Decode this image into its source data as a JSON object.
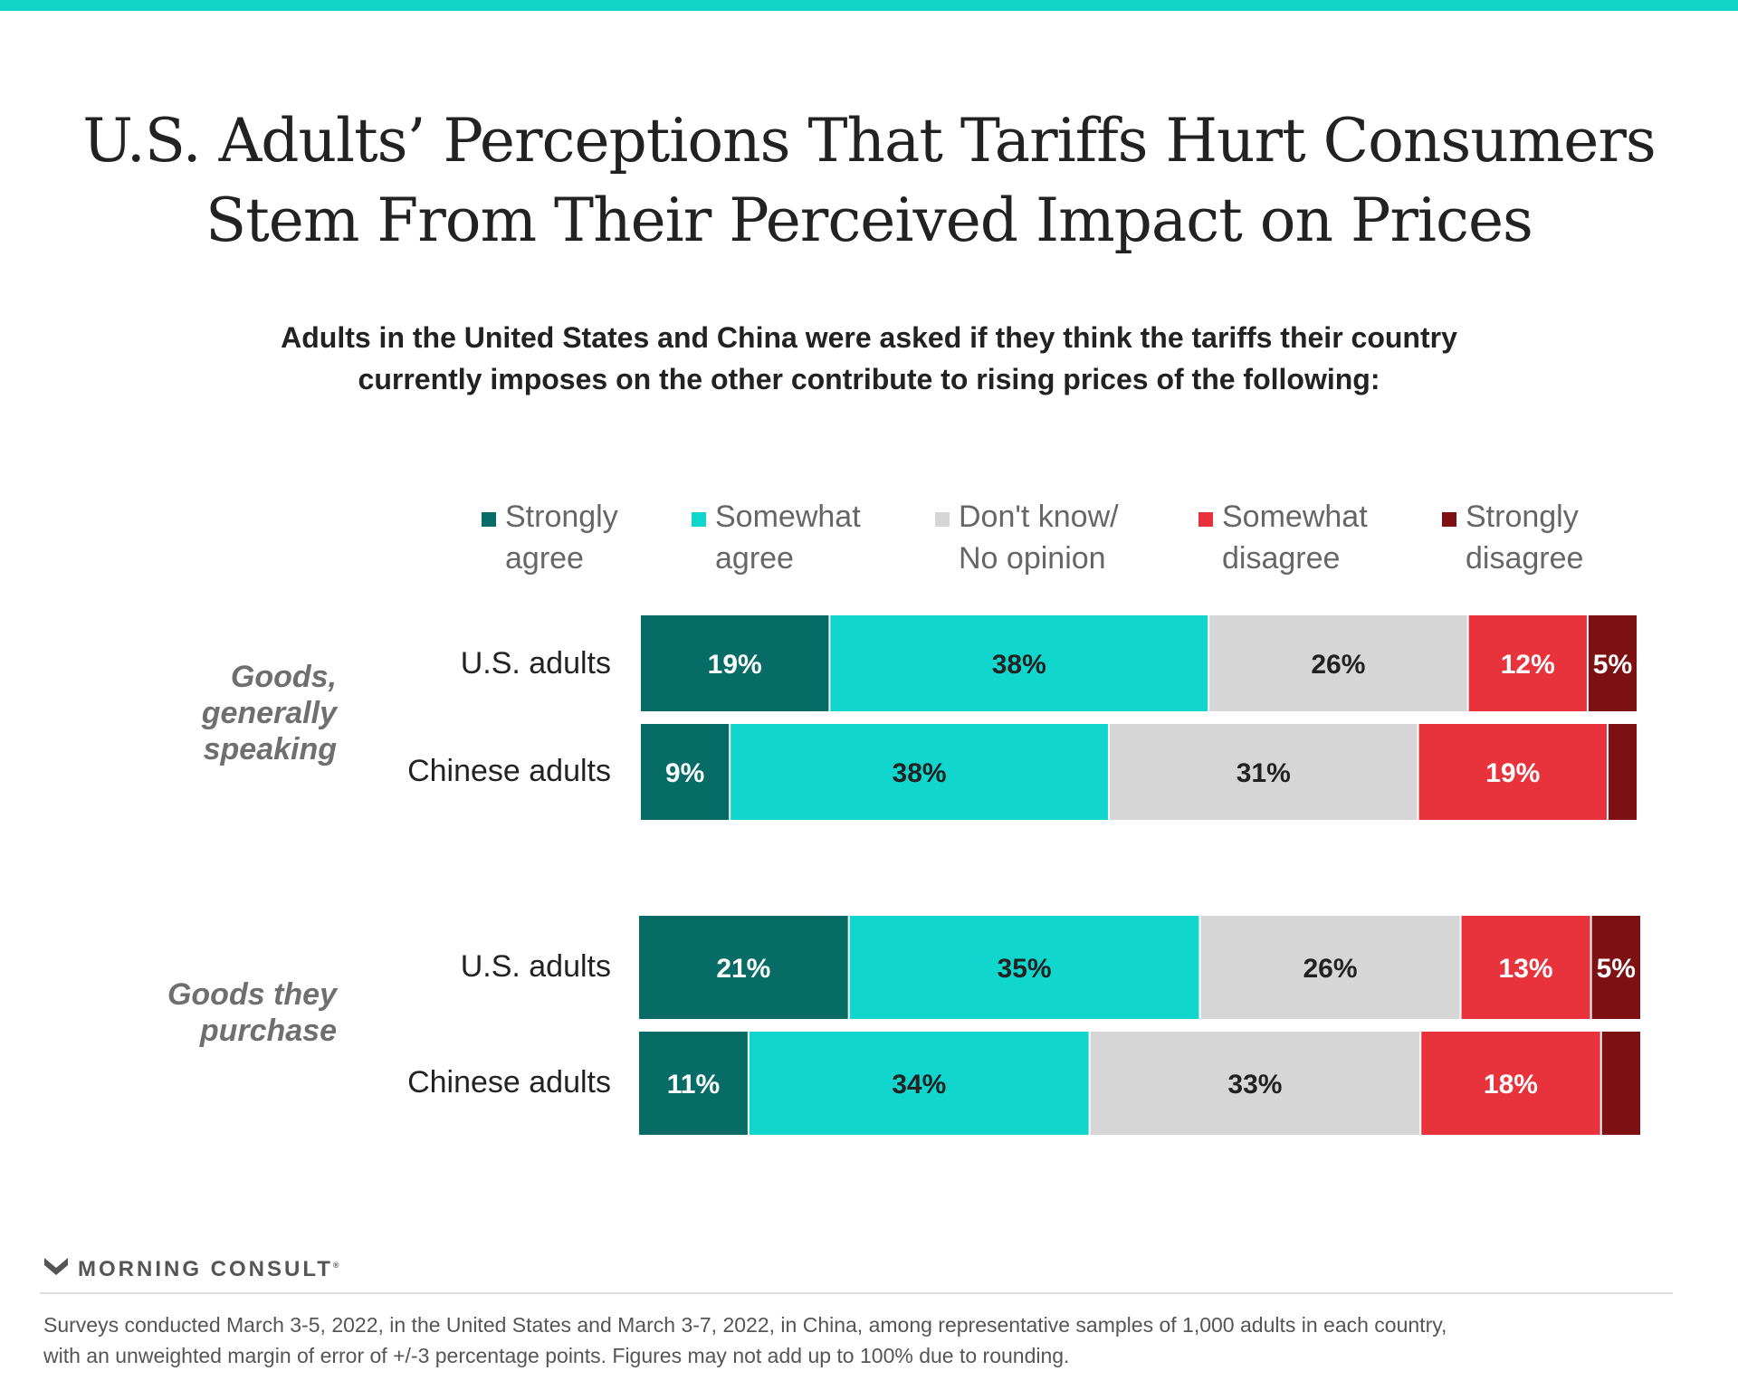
{
  "colors": {
    "accent_bar": "#13d2c8",
    "strongly_agree": "#076b66",
    "somewhat_agree": "#10d6cd",
    "dont_know": "#d6d6d6",
    "somewhat_disagree": "#e8323c",
    "strongly_disagree": "#7d1012"
  },
  "title_lines": [
    "U.S. Adults’ Perceptions That Tariffs Hurt Consumers",
    "Stem From Their Perceived Impact on Prices"
  ],
  "subtitle_lines": [
    "Adults in the United States and China were asked if they think the tariffs their country",
    "currently imposes on the other contribute to rising prices of the following:"
  ],
  "legend": [
    {
      "line1": "Strongly",
      "line2": "agree",
      "color_key": "strongly_agree"
    },
    {
      "line1": "Somewhat",
      "line2": "agree",
      "color_key": "somewhat_agree"
    },
    {
      "line1": "Don't know/",
      "line2": "No opinion",
      "color_key": "dont_know"
    },
    {
      "line1": "Somewhat",
      "line2": "disagree",
      "color_key": "somewhat_disagree"
    },
    {
      "line1": "Strongly",
      "line2": "disagree",
      "color_key": "strongly_disagree"
    }
  ],
  "groups": [
    {
      "label_lines": [
        "Goods,",
        "generally",
        "speaking"
      ],
      "rows": [
        "U.S. adults",
        "Chinese adults"
      ]
    },
    {
      "label_lines": [
        "Goods they",
        "purchase"
      ],
      "rows": [
        "U.S. adults",
        "Chinese adults"
      ]
    }
  ],
  "chart_data": {
    "type": "bar",
    "orientation": "horizontal",
    "stacked": true,
    "xlim": [
      0,
      100
    ],
    "groups": [
      "Goods, generally speaking",
      "Goods they purchase"
    ],
    "categories": [
      "U.S. adults",
      "Chinese adults",
      "U.S. adults",
      "Chinese adults"
    ],
    "series": [
      {
        "name": "Strongly agree",
        "values": [
          19,
          9,
          21,
          11
        ],
        "labels": [
          "19%",
          "9%",
          "21%",
          "11%"
        ]
      },
      {
        "name": "Somewhat agree",
        "values": [
          38,
          38,
          35,
          34
        ],
        "labels": [
          "38%",
          "38%",
          "35%",
          "34%"
        ]
      },
      {
        "name": "Don't know/ No opinion",
        "values": [
          26,
          31,
          26,
          33
        ],
        "labels": [
          "26%",
          "31%",
          "26%",
          "33%"
        ]
      },
      {
        "name": "Somewhat disagree",
        "values": [
          12,
          19,
          13,
          18
        ],
        "labels": [
          "12%",
          "19%",
          "13%",
          "18%"
        ]
      },
      {
        "name": "Strongly disagree",
        "values": [
          5,
          3,
          5,
          4
        ],
        "labels": [
          "5%",
          "",
          "5%",
          ""
        ]
      }
    ],
    "legend_position": "top",
    "grid": false
  },
  "footer": {
    "logo_text": "MORNING CONSULT",
    "logo_mark": "®",
    "note_lines": [
      "Surveys conducted March 3-5, 2022, in the United States and March 3-7, 2022, in China, among representative samples of 1,000 adults in each country,",
      "with an unweighted margin of error of +/-3 percentage points. Figures may not add up to 100% due to rounding."
    ]
  }
}
